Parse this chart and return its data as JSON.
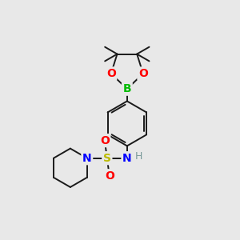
{
  "bg_color": "#e8e8e8",
  "bond_color": "#1a1a1a",
  "bond_width": 1.4,
  "atom_colors": {
    "B": "#00bb00",
    "O": "#ff0000",
    "N": "#0000ff",
    "S": "#bbbb00",
    "H": "#7a9a9a",
    "C": "#1a1a1a"
  },
  "afs": 10,
  "hfs": 9
}
